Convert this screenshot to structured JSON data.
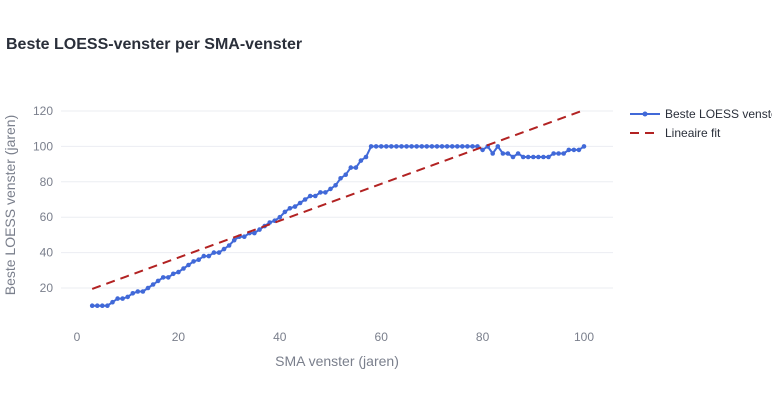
{
  "chart_data": {
    "type": "line",
    "title": "Beste LOESS-venster per SMA-venster",
    "xlabel": "SMA venster (jaren)",
    "ylabel": "Beste LOESS venster (jaren)",
    "xlim": [
      -2,
      106
    ],
    "ylim": [
      2,
      126
    ],
    "xticks": [
      0,
      20,
      40,
      60,
      80,
      100
    ],
    "yticks": [
      20,
      40,
      60,
      80,
      100,
      120
    ],
    "grid": true,
    "legend_position": "top-right",
    "series": [
      {
        "name": "Beste LOESS venste",
        "style": "lines+markers",
        "color": "#4169d8",
        "x": [
          3,
          4,
          5,
          6,
          7,
          8,
          9,
          10,
          11,
          12,
          13,
          14,
          15,
          16,
          17,
          18,
          19,
          20,
          21,
          22,
          23,
          24,
          25,
          26,
          27,
          28,
          29,
          30,
          31,
          32,
          33,
          34,
          35,
          36,
          37,
          38,
          39,
          40,
          41,
          42,
          43,
          44,
          45,
          46,
          47,
          48,
          49,
          50,
          51,
          52,
          53,
          54,
          55,
          56,
          57,
          58,
          59,
          60,
          61,
          62,
          63,
          64,
          65,
          66,
          67,
          68,
          69,
          70,
          71,
          72,
          73,
          74,
          75,
          76,
          77,
          78,
          79,
          80,
          81,
          82,
          83,
          84,
          85,
          86,
          87,
          88,
          89,
          90,
          91,
          92,
          93,
          94,
          95,
          96,
          97,
          98,
          99,
          100
        ],
        "y": [
          10,
          10,
          10,
          10,
          12,
          14,
          14,
          15,
          17,
          18,
          18,
          20,
          22,
          24,
          26,
          26,
          28,
          29,
          31,
          33,
          35,
          36,
          38,
          38,
          40,
          40,
          42,
          44,
          47,
          49,
          49,
          51,
          51,
          53,
          55,
          57,
          58,
          60,
          63,
          65,
          66,
          68,
          70,
          72,
          72,
          74,
          74,
          76,
          78,
          82,
          84,
          88,
          88,
          92,
          94,
          100,
          100,
          100,
          100,
          100,
          100,
          100,
          100,
          100,
          100,
          100,
          100,
          100,
          100,
          100,
          100,
          100,
          100,
          100,
          100,
          100,
          100,
          98,
          100,
          96,
          100,
          96,
          96,
          94,
          96,
          94,
          94,
          94,
          94,
          94,
          94,
          96,
          96,
          96,
          98,
          98,
          98,
          100
        ]
      },
      {
        "name": "Lineaire fit",
        "style": "dash",
        "color": "#b22222",
        "x": [
          3,
          100
        ],
        "y": [
          19.5,
          120.5
        ]
      }
    ]
  }
}
